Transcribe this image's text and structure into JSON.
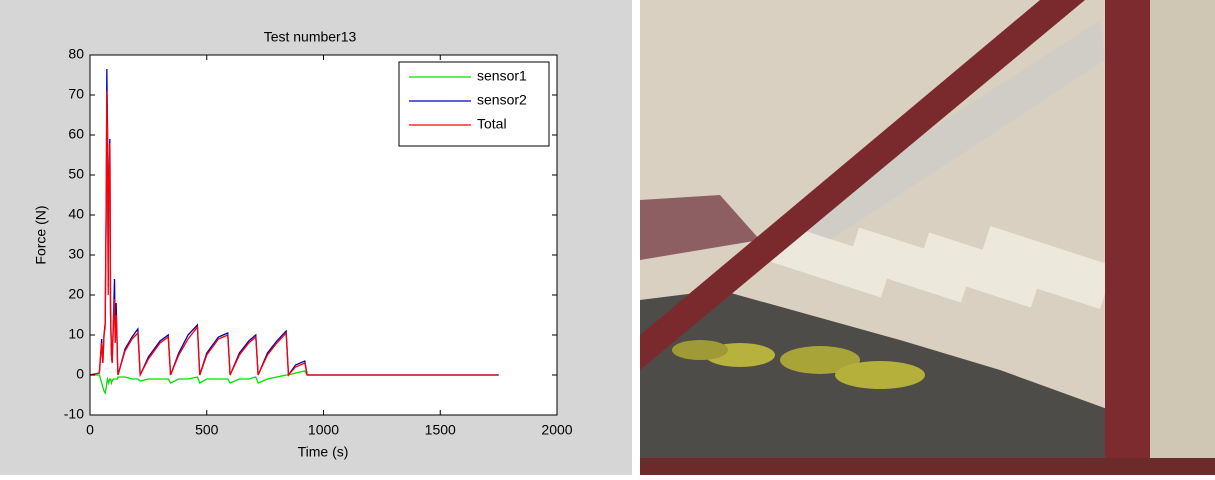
{
  "chart_data": {
    "type": "line",
    "title": "Test number13",
    "x_label": "Time (s)",
    "y_label": "Force (N)",
    "x": [
      0,
      40,
      50,
      55,
      60,
      65,
      70,
      72,
      75,
      78,
      80,
      85,
      88,
      92,
      95,
      100,
      105,
      108,
      112,
      115,
      118,
      120,
      150,
      180,
      205,
      215,
      250,
      300,
      335,
      345,
      380,
      420,
      460,
      470,
      500,
      550,
      590,
      600,
      640,
      680,
      710,
      720,
      760,
      800,
      840,
      850,
      880,
      920,
      930,
      1000,
      1750
    ],
    "series": [
      {
        "name": "sensor1",
        "color": "#00e000",
        "values": [
          0,
          0,
          -2,
          -3,
          -4,
          -4.5,
          -3,
          -2,
          -1,
          -1.5,
          -2,
          -1,
          -1,
          -2,
          -1.5,
          -1,
          -1,
          -1,
          -1,
          -1,
          -1,
          -0.5,
          -0.5,
          -1,
          -1,
          -1.5,
          -1,
          -1,
          -1,
          -2,
          -1,
          -1,
          -0.5,
          -2,
          -1,
          -1,
          -1,
          -2,
          -1,
          -1,
          -0.5,
          -2,
          -1,
          -0.5,
          0,
          0,
          0.5,
          1,
          0,
          0,
          0
        ]
      },
      {
        "name": "sensor2",
        "color": "#0000c0",
        "values": [
          0,
          0.5,
          9,
          3,
          10,
          13,
          48,
          76.5,
          62,
          22,
          46,
          59,
          16,
          5,
          3,
          13,
          24,
          9,
          18,
          11,
          3,
          0,
          6.5,
          9.5,
          11.5,
          0,
          4.5,
          8.5,
          10,
          0,
          5.5,
          10,
          12.5,
          0,
          5.5,
          9.5,
          10.5,
          0,
          5.5,
          8.5,
          10,
          0,
          5.5,
          8.5,
          11,
          0,
          2.5,
          3.5,
          0,
          0,
          0
        ]
      },
      {
        "name": "Total",
        "color": "#ff0000",
        "values": [
          0,
          0.5,
          8,
          3,
          10,
          12,
          45,
          71,
          60,
          20,
          45,
          58,
          15,
          5,
          3,
          12,
          19,
          8,
          15,
          10,
          3,
          0,
          6,
          9,
          10.5,
          0,
          4,
          8,
          9.5,
          0,
          5,
          9,
          12,
          0,
          5,
          9,
          10,
          0,
          5,
          8,
          9.5,
          0,
          5,
          8,
          10.5,
          0,
          2,
          3,
          0,
          0,
          0
        ]
      }
    ],
    "xlim": [
      0,
      2000
    ],
    "xticks": [
      0,
      500,
      1000,
      1500,
      2000
    ],
    "ylim": [
      -10,
      80
    ],
    "yticks": [
      -10,
      0,
      10,
      20,
      30,
      40,
      50,
      60,
      70,
      80
    ],
    "legend": "northeast"
  }
}
